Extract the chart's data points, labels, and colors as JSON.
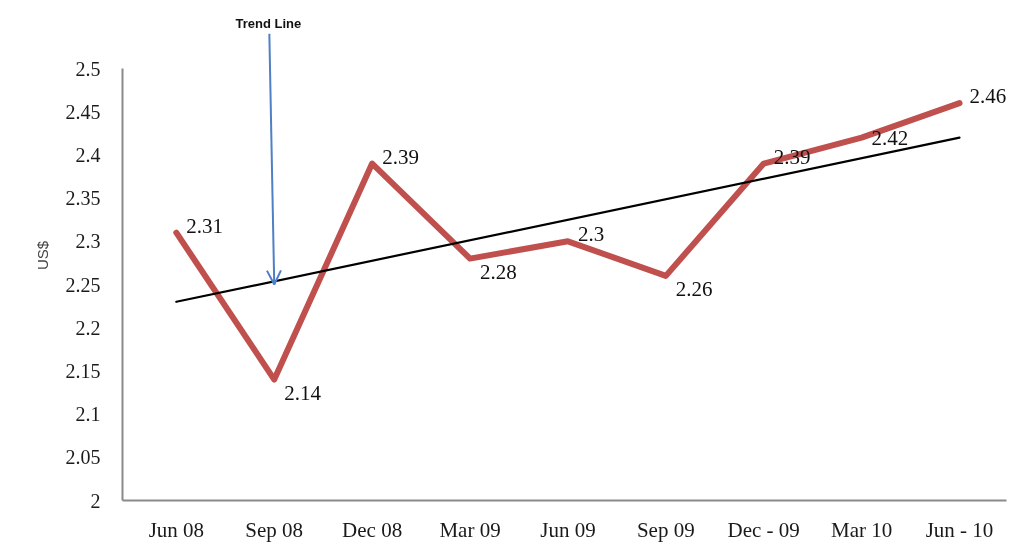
{
  "chart_data": {
    "type": "line",
    "ylabel": "US$",
    "categories": [
      "Jun 08",
      "Sep 08",
      "Dec 08",
      "Mar 09",
      "Jun 09",
      "Sep 09",
      "Dec - 09",
      "Mar 10",
      "Jun - 10"
    ],
    "series": [
      {
        "color": "#c0504d",
        "values": [
          2.31,
          2.14,
          2.39,
          2.28,
          2.3,
          2.26,
          2.39,
          2.42,
          2.46
        ],
        "value_labels": [
          "2.31",
          "2.14",
          "2.39",
          "2.28",
          "2.3",
          "2.26",
          "2.39",
          "2.42",
          "2.46"
        ]
      },
      {
        "type": "line",
        "x": [
          "Jun 08",
          "Jun - 10"
        ],
        "color": "#000000",
        "values": [
          2.23,
          2.42
        ]
      }
    ],
    "ylim": [
      2,
      2.5
    ],
    "yticks": [
      2,
      2.05,
      2.1,
      2.15,
      2.2,
      2.25,
      2.3,
      2.35,
      2.4,
      2.45,
      2.5
    ],
    "annotations": [
      {
        "text": "Trend Line",
        "x": "Sep 08",
        "y": 2.25
      }
    ],
    "grid": false,
    "marker": "none",
    "line_style": "solid"
  }
}
